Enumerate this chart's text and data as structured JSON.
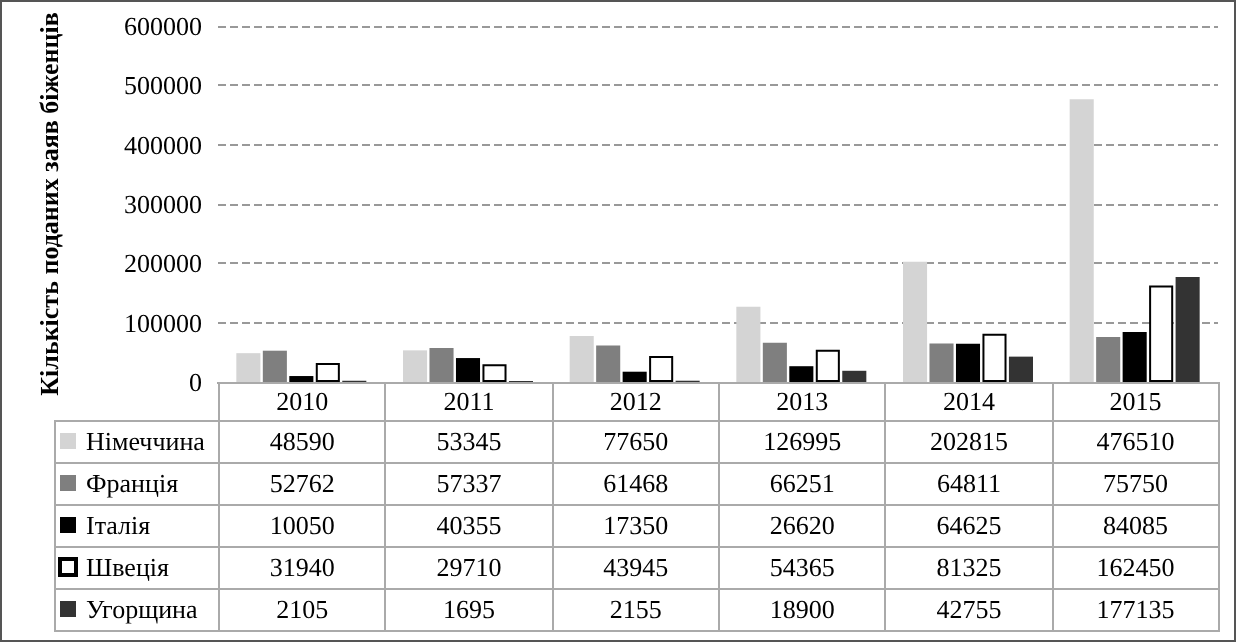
{
  "chart_data": {
    "type": "bar",
    "ylabel": "Кількість поданих заяв біженців",
    "categories": [
      "2010",
      "2011",
      "2012",
      "2013",
      "2014",
      "2015"
    ],
    "series": [
      {
        "name": "Німеччина",
        "color": "#d4d4d4",
        "values": [
          48590,
          53345,
          77650,
          126995,
          202815,
          476510
        ]
      },
      {
        "name": "Франція",
        "color": "#7f7f7f",
        "values": [
          52762,
          57337,
          61468,
          66251,
          64811,
          75750
        ]
      },
      {
        "name": "Італія",
        "color": "#000000",
        "values": [
          10050,
          40355,
          17350,
          26620,
          64625,
          84085
        ]
      },
      {
        "name": "Швеція",
        "color": "#ffffff",
        "values": [
          31940,
          29710,
          43945,
          54365,
          81325,
          162450
        ]
      },
      {
        "name": "Угорщина",
        "color": "#333333",
        "values": [
          2105,
          1695,
          2155,
          18900,
          42755,
          177135
        ]
      }
    ],
    "ylim": [
      0,
      600000
    ],
    "yticks": [
      0,
      100000,
      200000,
      300000,
      400000,
      500000,
      600000
    ],
    "grid": "y",
    "legend": "bottom left",
    "data_labels": true
  }
}
